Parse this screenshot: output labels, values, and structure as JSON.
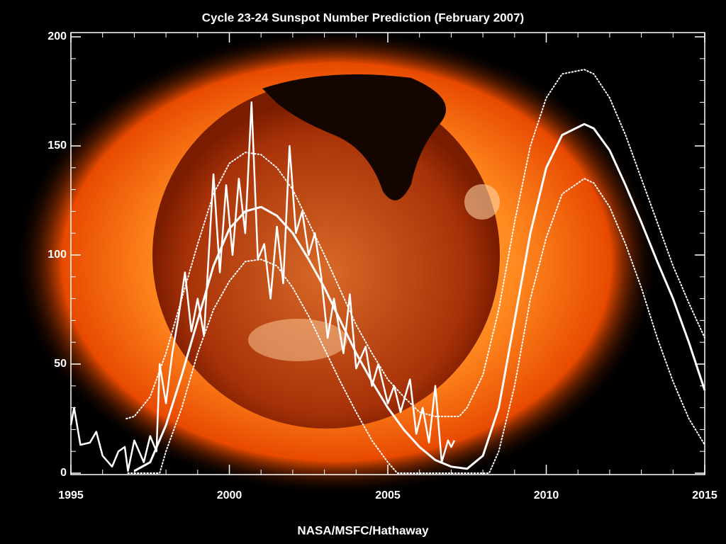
{
  "chart_data": {
    "type": "line",
    "title": "Cycle 23-24 Sunspot Number Prediction (February 2007)",
    "credit": "NASA/MSFC/Hathaway",
    "xlim": [
      1995,
      2015
    ],
    "xticks": [
      1995,
      2000,
      2005,
      2010,
      2015
    ],
    "xminorticks": [
      1996,
      1997,
      1998,
      1999,
      2001,
      2002,
      2003,
      2004,
      2006,
      2007,
      2008,
      2009,
      2011,
      2012,
      2013,
      2014
    ],
    "ylim": [
      0,
      200
    ],
    "yticks": [
      0,
      50,
      100,
      150,
      200
    ],
    "yminorticks": [
      10,
      20,
      30,
      40,
      60,
      70,
      80,
      90,
      110,
      120,
      130,
      140,
      160,
      170,
      180,
      190
    ],
    "series": [
      {
        "color": "#ffffff",
        "style": "solid",
        "width": 2.5,
        "x": [
          1995.0,
          1995.1,
          1995.3,
          1995.6,
          1995.8,
          1996.0,
          1996.3,
          1996.5,
          1996.7,
          1996.8,
          1997.0,
          1997.3,
          1997.5,
          1997.7,
          1997.8,
          1998.0,
          1998.2,
          1998.4,
          1998.6,
          1998.8,
          1999.0,
          1999.2,
          1999.5,
          1999.7,
          1999.9,
          2000.1,
          2000.3,
          2000.5,
          2000.7,
          2000.9,
          2001.1,
          2001.3,
          2001.5,
          2001.7,
          2001.9,
          2002.1,
          2002.3,
          2002.5,
          2002.7,
          2002.9,
          2003.1,
          2003.3,
          2003.6,
          2003.8,
          2004.0,
          2004.3,
          2004.5,
          2004.7,
          2005.0,
          2005.2,
          2005.4,
          2005.7,
          2005.9,
          2006.1,
          2006.3,
          2006.5,
          2006.7,
          2006.9,
          2007.0,
          2007.1
        ],
        "values": [
          22,
          30,
          13,
          14,
          19,
          8,
          3,
          10,
          12,
          1,
          15,
          5,
          17,
          10,
          50,
          32,
          55,
          72,
          92,
          65,
          80,
          63,
          137,
          92,
          132,
          100,
          135,
          110,
          170,
          98,
          105,
          80,
          113,
          87,
          150,
          110,
          120,
          100,
          110,
          90,
          62,
          80,
          55,
          82,
          48,
          58,
          40,
          50,
          32,
          40,
          28,
          43,
          18,
          30,
          14,
          40,
          5,
          15,
          12,
          15
        ]
      },
      {
        "color": "#ffffff",
        "style": "solid",
        "width": 3,
        "x": [
          1997.0,
          1997.5,
          1998.0,
          1998.5,
          1999.0,
          1999.5,
          2000.0,
          2000.5,
          2001.0,
          2001.5,
          2002.0,
          2002.5,
          2003.0,
          2003.5,
          2004.0,
          2004.5,
          2005.0,
          2005.5,
          2006.0,
          2006.5,
          2007.0,
          2007.5,
          2008.0,
          2008.5,
          2009.0,
          2009.5,
          2010.0,
          2010.5,
          2011.2,
          2011.5,
          2012.0,
          2012.5,
          2013.0,
          2013.5,
          2014.0,
          2014.5,
          2015.0
        ],
        "values": [
          1,
          5,
          22,
          45,
          70,
          95,
          112,
          120,
          122,
          118,
          110,
          98,
          85,
          70,
          55,
          42,
          30,
          20,
          12,
          6,
          3,
          2,
          8,
          30,
          70,
          110,
          140,
          155,
          160,
          158,
          148,
          132,
          115,
          97,
          80,
          60,
          38
        ]
      },
      {
        "color": "#ffffff",
        "style": "dotted",
        "width": 2,
        "x": [
          1996.75,
          1997.0,
          1997.5,
          1998.0,
          1998.5,
          1999.0,
          1999.5,
          2000.0,
          2000.5,
          2001.0,
          2001.5,
          2002.0,
          2002.5,
          2003.0,
          2003.5,
          2004.0,
          2004.5,
          2005.0,
          2005.5,
          2006.0,
          2006.5,
          2007.25,
          2007.5,
          2008.0,
          2008.5,
          2009.0,
          2009.5,
          2010.0,
          2010.5,
          2011.2,
          2011.5,
          2012.0,
          2012.5,
          2013.0,
          2013.5,
          2014.0,
          2014.5,
          2015.0
        ],
        "values": [
          25,
          26,
          35,
          55,
          80,
          105,
          128,
          142,
          147,
          146,
          140,
          130,
          115,
          100,
          84,
          68,
          55,
          43,
          35,
          28,
          26,
          26,
          30,
          45,
          75,
          115,
          150,
          172,
          183,
          185,
          183,
          172,
          155,
          135,
          115,
          95,
          78,
          62
        ]
      },
      {
        "color": "#ffffff",
        "style": "dotted",
        "width": 2,
        "x": [
          1996.8,
          1997.8,
          1998.0,
          1998.5,
          1999.0,
          1999.5,
          2000.0,
          2000.5,
          2001.0,
          2001.5,
          2002.0,
          2002.5,
          2003.0,
          2003.5,
          2004.0,
          2004.5,
          2005.0,
          2005.3,
          2008.2,
          2008.5,
          2009.0,
          2009.5,
          2010.0,
          2010.5,
          2011.2,
          2011.5,
          2012.0,
          2012.5,
          2013.0,
          2013.5,
          2014.0,
          2014.5,
          2015.0
        ],
        "values": [
          0,
          0,
          10,
          30,
          55,
          75,
          88,
          97,
          98,
          95,
          85,
          72,
          57,
          42,
          28,
          15,
          5,
          0,
          0,
          10,
          40,
          80,
          108,
          128,
          135,
          133,
          122,
          105,
          85,
          62,
          42,
          25,
          13
        ]
      }
    ]
  }
}
